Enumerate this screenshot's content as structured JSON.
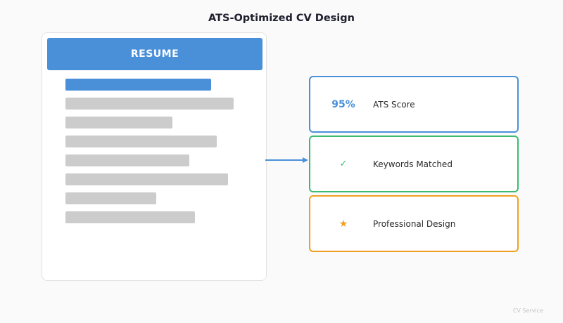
{
  "title": "ATS-Optimized CV Design",
  "resume": {
    "header": "RESUME",
    "accent_color": "#4a90d9",
    "line_color": "#cccccc"
  },
  "metrics": [
    {
      "value": "95%",
      "label": "ATS Score",
      "color": "#4a90d9",
      "icon": "percent-value"
    },
    {
      "value": "✓",
      "label": "Keywords Matched",
      "color": "#3dbb6f",
      "icon": "check-icon"
    },
    {
      "value": "★",
      "label": "Professional Design",
      "color": "#f0a020",
      "icon": "star-icon"
    }
  ],
  "footer": "CV Service"
}
